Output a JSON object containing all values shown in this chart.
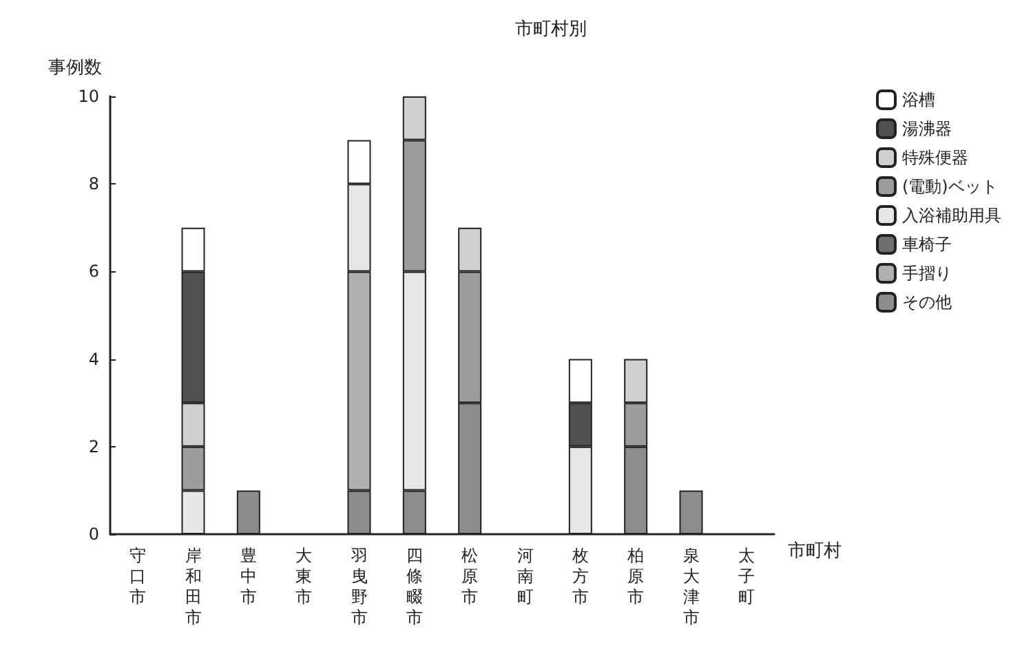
{
  "chart_data": {
    "type": "bar",
    "title": "市町村別",
    "ylabel": "事例数",
    "xlabel": "市町村",
    "stacked": true,
    "grid": false,
    "legend": "right",
    "ylim": [
      0,
      10
    ],
    "yticks": [
      0,
      2,
      4,
      6,
      8,
      10
    ],
    "categories": [
      "守口市",
      "岸和田市",
      "豊中市",
      "大東市",
      "羽曳野市",
      "四條畷市",
      "松原市",
      "河南町",
      "枚方市",
      "柏原市",
      "泉大津市",
      "太子町"
    ],
    "series": [
      {
        "name": "その他",
        "color": "#8c8c8c",
        "values": [
          null,
          null,
          1,
          null,
          1,
          1,
          3,
          null,
          null,
          2,
          1,
          null
        ]
      },
      {
        "name": "手摺り",
        "color": "#b0b0b0",
        "values": [
          null,
          null,
          null,
          null,
          5,
          null,
          null,
          null,
          null,
          null,
          null,
          null
        ]
      },
      {
        "name": "車椅子",
        "color": "#6e6e6e",
        "values": [
          null,
          null,
          null,
          null,
          null,
          null,
          null,
          null,
          null,
          null,
          null,
          null
        ]
      },
      {
        "name": "入浴補助用具",
        "color": "#e6e6e6",
        "values": [
          null,
          1,
          null,
          null,
          2,
          5,
          null,
          null,
          2,
          null,
          null,
          null
        ]
      },
      {
        "name": "(電動)ベット",
        "color": "#9c9c9c",
        "values": [
          null,
          1,
          null,
          null,
          null,
          3,
          3,
          null,
          null,
          1,
          null,
          null
        ]
      },
      {
        "name": "特殊便器",
        "color": "#d0d0d0",
        "values": [
          null,
          1,
          null,
          null,
          null,
          1,
          1,
          null,
          null,
          1,
          null,
          null
        ]
      },
      {
        "name": "湯沸器",
        "color": "#505050",
        "values": [
          null,
          3,
          null,
          null,
          null,
          null,
          null,
          null,
          1,
          null,
          null,
          null
        ]
      },
      {
        "name": "浴槽",
        "color": "#ffffff",
        "values": [
          null,
          1,
          null,
          null,
          1,
          null,
          null,
          null,
          1,
          null,
          null,
          null
        ]
      }
    ]
  }
}
